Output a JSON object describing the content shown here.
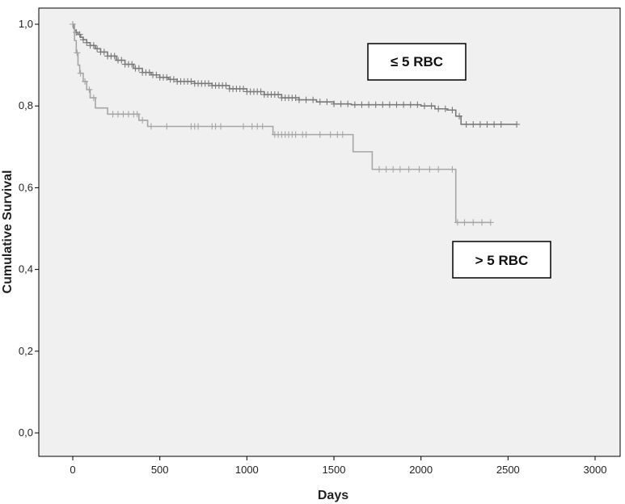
{
  "chart_data": {
    "type": "line",
    "title": "",
    "xlabel": "Days",
    "ylabel": "Cumulative Survival",
    "xlim": [
      0,
      3000
    ],
    "ylim": [
      0,
      1.0
    ],
    "x_ticks": [
      0,
      500,
      1000,
      1500,
      2000,
      2500,
      3000
    ],
    "y_ticks": [
      0.0,
      0.2,
      0.4,
      0.6,
      0.8,
      1.0
    ],
    "x_tick_labels": [
      "0",
      "500",
      "1000",
      "1500",
      "2000",
      "2500",
      "3000"
    ],
    "y_tick_labels": [
      "0,0",
      "0,2",
      "0,4",
      "0,6",
      "0,8",
      "1,0"
    ],
    "grid": false,
    "series": [
      {
        "name": "≤ 5 RBC",
        "color": "#7a7a7a",
        "steps": [
          [
            0,
            1.0
          ],
          [
            5,
            0.99
          ],
          [
            10,
            0.985
          ],
          [
            20,
            0.98
          ],
          [
            30,
            0.975
          ],
          [
            45,
            0.968
          ],
          [
            60,
            0.962
          ],
          [
            80,
            0.955
          ],
          [
            100,
            0.948
          ],
          [
            130,
            0.94
          ],
          [
            160,
            0.932
          ],
          [
            200,
            0.922
          ],
          [
            250,
            0.912
          ],
          [
            300,
            0.902
          ],
          [
            350,
            0.892
          ],
          [
            400,
            0.882
          ],
          [
            450,
            0.876
          ],
          [
            500,
            0.87
          ],
          [
            550,
            0.865
          ],
          [
            600,
            0.86
          ],
          [
            700,
            0.855
          ],
          [
            800,
            0.85
          ],
          [
            900,
            0.842
          ],
          [
            1000,
            0.835
          ],
          [
            1100,
            0.828
          ],
          [
            1200,
            0.82
          ],
          [
            1300,
            0.815
          ],
          [
            1400,
            0.81
          ],
          [
            1500,
            0.805
          ],
          [
            1600,
            0.803
          ],
          [
            1800,
            0.803
          ],
          [
            2000,
            0.8
          ],
          [
            2080,
            0.793
          ],
          [
            2150,
            0.79
          ],
          [
            2200,
            0.775
          ],
          [
            2230,
            0.755
          ],
          [
            2550,
            0.755
          ]
        ],
        "censored": [
          0,
          20,
          40,
          60,
          80,
          100,
          120,
          140,
          160,
          180,
          200,
          220,
          240,
          260,
          280,
          300,
          320,
          340,
          360,
          380,
          400,
          420,
          440,
          460,
          480,
          500,
          520,
          540,
          560,
          580,
          600,
          620,
          640,
          660,
          680,
          700,
          720,
          740,
          760,
          780,
          800,
          820,
          840,
          860,
          880,
          900,
          920,
          940,
          960,
          980,
          1000,
          1020,
          1040,
          1060,
          1080,
          1100,
          1120,
          1140,
          1160,
          1180,
          1200,
          1220,
          1240,
          1260,
          1280,
          1300,
          1340,
          1380,
          1420,
          1460,
          1500,
          1540,
          1580,
          1620,
          1660,
          1700,
          1740,
          1780,
          1820,
          1860,
          1900,
          1940,
          1980,
          2020,
          2060,
          2100,
          2140,
          2180,
          2220,
          2260,
          2300,
          2340,
          2380,
          2420,
          2460,
          2550
        ]
      },
      {
        "name": "> 5 RBC",
        "color": "#a6a6a6",
        "steps": [
          [
            0,
            1.0
          ],
          [
            10,
            0.96
          ],
          [
            20,
            0.93
          ],
          [
            30,
            0.9
          ],
          [
            40,
            0.88
          ],
          [
            60,
            0.86
          ],
          [
            80,
            0.84
          ],
          [
            100,
            0.82
          ],
          [
            130,
            0.795
          ],
          [
            200,
            0.78
          ],
          [
            380,
            0.765
          ],
          [
            430,
            0.75
          ],
          [
            1150,
            0.73
          ],
          [
            1610,
            0.688
          ],
          [
            1720,
            0.645
          ],
          [
            2200,
            0.515
          ],
          [
            2400,
            0.515
          ]
        ],
        "censored": [
          0,
          25,
          45,
          70,
          95,
          120,
          230,
          260,
          290,
          320,
          350,
          370,
          400,
          450,
          540,
          680,
          700,
          720,
          800,
          820,
          850,
          980,
          1030,
          1060,
          1090,
          1160,
          1180,
          1200,
          1220,
          1240,
          1260,
          1280,
          1320,
          1340,
          1420,
          1480,
          1520,
          1550,
          1760,
          1800,
          1840,
          1880,
          1930,
          1990,
          2050,
          2100,
          2180,
          2210,
          2250,
          2300,
          2350,
          2400
        ]
      }
    ],
    "annotations": [
      {
        "text": "≤ 5 RBC",
        "near_series": 0
      },
      {
        "text": "> 5 RBC",
        "near_series": 1
      }
    ]
  }
}
